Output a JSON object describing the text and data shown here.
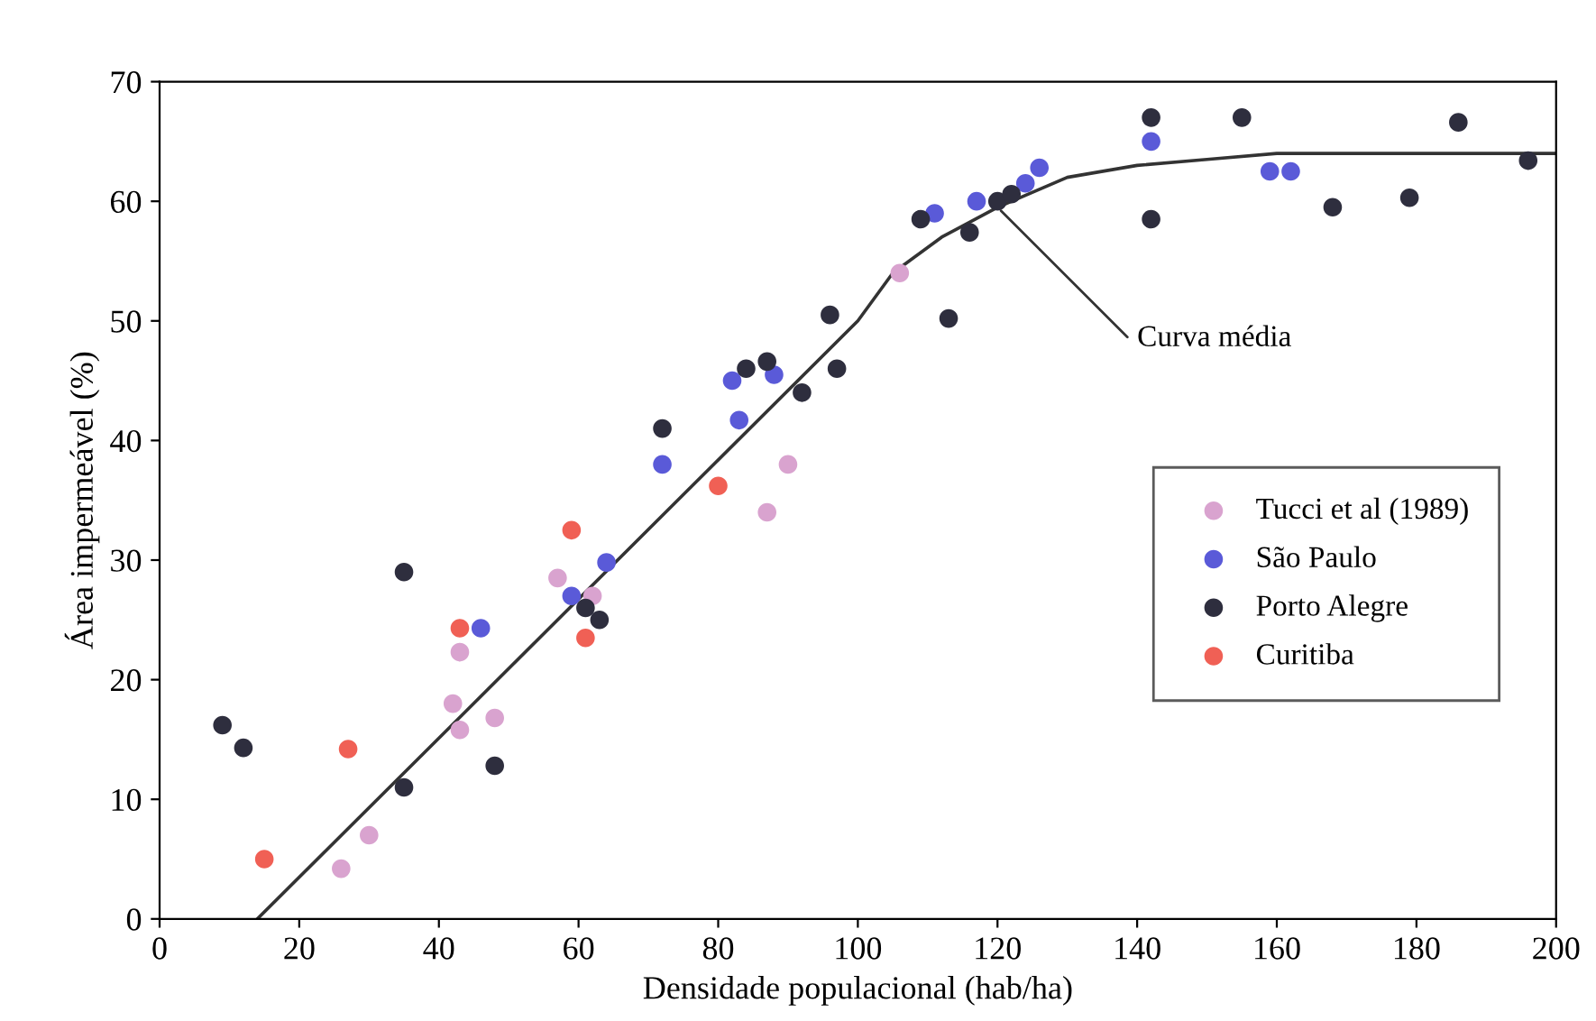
{
  "chart_data": {
    "type": "scatter",
    "xlabel": "Densidade populacional (hab/ha)",
    "ylabel": "Área impermeável (%)",
    "xlim": [
      0,
      200
    ],
    "xticks": [
      0,
      20,
      40,
      60,
      80,
      100,
      120,
      140,
      160,
      180,
      200
    ],
    "ylim": [
      0,
      70
    ],
    "yticks": [
      0,
      10,
      20,
      30,
      40,
      50,
      60,
      70
    ],
    "grid": false,
    "legend": "right",
    "marker": "circle",
    "series": [
      {
        "name": "Tucci et al (1989)",
        "color": "#d9a3cf",
        "x": [
          26,
          30,
          42,
          43,
          43,
          48,
          57,
          62,
          87,
          90,
          106
        ],
        "values": [
          4.2,
          7,
          18,
          15.8,
          22.3,
          16.8,
          28.5,
          27,
          34,
          38,
          54
        ]
      },
      {
        "name": "São Paulo",
        "color": "#5a5ad8",
        "x": [
          46,
          59,
          64,
          72,
          82,
          83,
          88,
          111,
          117,
          124,
          126,
          142,
          159,
          162
        ],
        "values": [
          24.3,
          27,
          29.8,
          38,
          45,
          41.7,
          45.5,
          59,
          60,
          61.5,
          62.8,
          65,
          62.5,
          62.5
        ]
      },
      {
        "name": "Porto Alegre",
        "color": "#2e2e3e",
        "x": [
          9,
          12,
          35,
          35,
          48,
          61,
          63,
          72,
          84,
          87,
          92,
          96,
          97,
          109,
          113,
          116,
          120,
          122,
          142,
          142,
          155,
          168,
          179,
          186,
          196
        ],
        "values": [
          16.2,
          14.3,
          29,
          11,
          12.8,
          26,
          25,
          41,
          46,
          46.6,
          44,
          50.5,
          46,
          58.5,
          50.2,
          57.4,
          60,
          60.6,
          67,
          58.5,
          67,
          59.5,
          60.3,
          66.6,
          63.4
        ]
      },
      {
        "name": "Curitiba",
        "color": "#f06055",
        "x": [
          15,
          27,
          43,
          59,
          61,
          80
        ],
        "values": [
          5,
          14.2,
          24.3,
          32.5,
          23.5,
          36.2
        ]
      },
      {
        "type": "line",
        "color": "#333333",
        "marker": "none",
        "x": [
          14,
          100,
          105,
          112,
          120,
          130,
          140,
          150,
          160,
          200
        ],
        "values": [
          0,
          50,
          54,
          57,
          59.5,
          62,
          63,
          63.5,
          64,
          64
        ]
      }
    ],
    "annotations": [
      {
        "text": "Curva média",
        "x": 120,
        "y": 59.5
      }
    ]
  }
}
